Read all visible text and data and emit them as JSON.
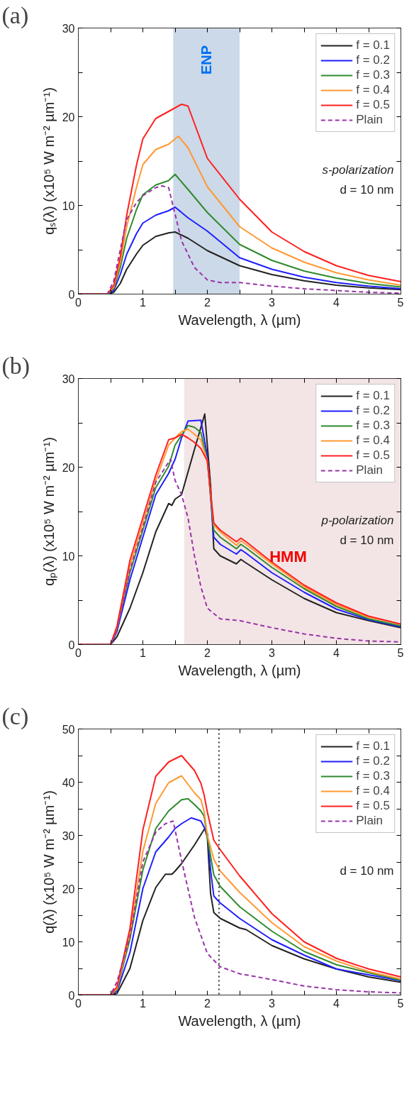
{
  "chart_data": [
    {
      "type": "line",
      "title": "(a)",
      "xlabel": "Wavelength, λ (µm)",
      "ylabel": "qₛ(λ) (x10⁵ W m⁻² µm⁻¹)",
      "xlim": [
        0,
        5
      ],
      "ylim": [
        0,
        30
      ],
      "xticks": [
        0,
        {
          "value": 0.5,
          "label": null
        },
        1,
        {
          "value": 1.5,
          "label": null
        },
        2,
        {
          "value": 2.5,
          "label": null
        },
        3,
        {
          "value": 3.5,
          "label": null
        },
        4,
        {
          "value": 4.5,
          "label": null
        },
        5
      ],
      "yticks": [
        0,
        {
          "value": 5,
          "label": null
        },
        10,
        {
          "value": 15,
          "label": null
        },
        20,
        {
          "value": 25,
          "label": null
        },
        30
      ],
      "legend": "top right",
      "grid": false,
      "bands": [
        {
          "axis": "x",
          "from": 1.47,
          "to": 2.5,
          "label": "ENP",
          "color": "#ccd9e8"
        }
      ],
      "annotations": [
        "s-polarization",
        "d = 10 nm"
      ],
      "series": [
        {
          "name": "f = 0.1",
          "color": "#222222",
          "x": [
            0,
            0.45,
            0.55,
            0.65,
            0.75,
            0.9,
            1.0,
            1.2,
            1.4,
            1.5,
            1.7,
            2.0,
            2.5,
            3.0,
            3.5,
            4.0,
            4.5,
            5.0
          ],
          "values": [
            0,
            0,
            0.2,
            1.2,
            2.8,
            4.5,
            5.5,
            6.5,
            6.9,
            7.0,
            6.3,
            4.9,
            3.2,
            2.2,
            1.5,
            1.0,
            0.7,
            0.5
          ]
        },
        {
          "name": "f = 0.2",
          "color": "#1f1fff",
          "x": [
            0,
            0.45,
            0.55,
            0.65,
            0.75,
            0.9,
            1.0,
            1.2,
            1.4,
            1.5,
            1.7,
            2.0,
            2.5,
            3.0,
            3.5,
            4.0,
            4.5,
            5.0
          ],
          "values": [
            0,
            0,
            0.4,
            2.2,
            4.5,
            6.8,
            8.0,
            8.9,
            9.4,
            9.8,
            8.6,
            7.1,
            4.1,
            2.8,
            1.9,
            1.3,
            0.9,
            0.6
          ]
        },
        {
          "name": "f = 0.3",
          "color": "#2e8b2e",
          "x": [
            0,
            0.45,
            0.55,
            0.65,
            0.75,
            0.9,
            1.0,
            1.2,
            1.4,
            1.5,
            1.7,
            2.0,
            2.5,
            3.0,
            3.5,
            4.0,
            4.5,
            5.0
          ],
          "values": [
            0,
            0,
            0.6,
            3.0,
            6.3,
            9.5,
            11.2,
            12.3,
            12.8,
            13.5,
            11.8,
            9.2,
            5.6,
            3.8,
            2.6,
            1.8,
            1.2,
            0.8
          ]
        },
        {
          "name": "f = 0.4",
          "color": "#ff9933",
          "x": [
            0,
            0.45,
            0.55,
            0.65,
            0.75,
            0.9,
            1.0,
            1.2,
            1.4,
            1.55,
            1.7,
            2.0,
            2.5,
            3.0,
            3.5,
            4.0,
            4.5,
            5.0
          ],
          "values": [
            0,
            0,
            0.8,
            3.6,
            7.6,
            12.0,
            14.6,
            16.3,
            16.9,
            17.8,
            16.5,
            12.1,
            7.6,
            5.2,
            3.6,
            2.4,
            1.6,
            1.0
          ]
        },
        {
          "name": "f = 0.5",
          "color": "#ff2020",
          "x": [
            0,
            0.45,
            0.55,
            0.65,
            0.75,
            0.9,
            1.0,
            1.2,
            1.4,
            1.5,
            1.6,
            1.7,
            2.0,
            2.5,
            3.0,
            3.5,
            4.0,
            4.5,
            5.0
          ],
          "values": [
            0,
            0,
            1.0,
            4.2,
            8.9,
            14.5,
            17.5,
            19.8,
            20.6,
            21.0,
            21.4,
            21.2,
            15.3,
            10.7,
            7.0,
            4.8,
            3.2,
            2.1,
            1.4
          ]
        },
        {
          "name": "Plain",
          "color": "#9933aa",
          "line_style": "dashed",
          "x": [
            0,
            0.45,
            0.55,
            0.65,
            0.75,
            0.9,
            1.0,
            1.2,
            1.3,
            1.4,
            1.5,
            1.6,
            1.8,
            2.0,
            2.2,
            2.5,
            3.0,
            3.5,
            4.0,
            4.5,
            5.0
          ],
          "values": [
            0,
            0,
            1.5,
            5.0,
            8.4,
            10.3,
            11.1,
            12.0,
            12.2,
            12.0,
            9.0,
            6.0,
            3.0,
            1.6,
            1.3,
            1.3,
            0.9,
            0.6,
            0.4,
            0.2,
            0.1
          ]
        }
      ]
    },
    {
      "type": "line",
      "title": "(b)",
      "xlabel": "Wavelength, λ (µm)",
      "ylabel": "qₚ(λ) (x10⁵ W m⁻² µm⁻¹)",
      "xlim": [
        0,
        5
      ],
      "ylim": [
        0,
        30
      ],
      "xticks": [
        0,
        {
          "value": 0.5,
          "label": null
        },
        1,
        {
          "value": 1.5,
          "label": null
        },
        2,
        {
          "value": 2.5,
          "label": null
        },
        3,
        {
          "value": 3.5,
          "label": null
        },
        4,
        {
          "value": 4.5,
          "label": null
        },
        5
      ],
      "yticks": [
        0,
        {
          "value": 5,
          "label": null
        },
        10,
        {
          "value": 15,
          "label": null
        },
        20,
        {
          "value": 25,
          "label": null
        },
        30
      ],
      "legend": "top right",
      "grid": false,
      "bands": [
        {
          "axis": "x",
          "from": 1.64,
          "to": 5,
          "label": "HMM",
          "color": "#f3e5e5"
        }
      ],
      "annotations": [
        "p-polarization",
        "d = 10 nm"
      ],
      "series": [
        {
          "name": "f = 0.1",
          "color": "#222222",
          "x": [
            0,
            0.5,
            0.6,
            0.8,
            1.0,
            1.2,
            1.3,
            1.4,
            1.45,
            1.5,
            1.6,
            1.8,
            1.96,
            2.05,
            2.1,
            2.2,
            2.45,
            2.52,
            2.6,
            3.0,
            3.5,
            4.0,
            4.5,
            5.0
          ],
          "values": [
            0,
            0,
            0.9,
            4.1,
            8.1,
            12.7,
            14.3,
            15.9,
            15.7,
            16.4,
            16.9,
            22.0,
            26.0,
            18.0,
            10.8,
            10.0,
            9.1,
            9.6,
            9.2,
            7.3,
            5.2,
            3.6,
            2.7,
            1.9
          ]
        },
        {
          "name": "f = 0.2",
          "color": "#1f1fff",
          "x": [
            0,
            0.5,
            0.6,
            0.8,
            1.0,
            1.2,
            1.4,
            1.5,
            1.6,
            1.7,
            1.9,
            2.0,
            2.1,
            2.2,
            2.45,
            2.52,
            2.6,
            3.0,
            3.5,
            4.0,
            4.5,
            5.0
          ],
          "values": [
            0,
            0,
            1.5,
            7.3,
            12.1,
            16.9,
            19.3,
            20.9,
            23.3,
            25.2,
            25.3,
            21.2,
            12.1,
            11.3,
            10.2,
            10.7,
            10.3,
            8.1,
            5.9,
            4.0,
            2.8,
            2.0
          ]
        },
        {
          "name": "f = 0.3",
          "color": "#2e8b2e",
          "x": [
            0,
            0.5,
            0.6,
            0.8,
            1.0,
            1.2,
            1.4,
            1.5,
            1.6,
            1.7,
            1.8,
            1.9,
            2.0,
            2.1,
            2.2,
            2.45,
            2.52,
            2.6,
            3.0,
            3.5,
            4.0,
            4.5,
            5.0
          ],
          "values": [
            0,
            0,
            1.8,
            8.1,
            12.9,
            17.7,
            20.1,
            22.5,
            23.6,
            24.7,
            24.5,
            23.9,
            20.7,
            12.9,
            12.1,
            10.8,
            11.3,
            10.9,
            8.7,
            6.3,
            4.3,
            2.9,
            2.1
          ]
        },
        {
          "name": "f = 0.4",
          "color": "#ff9933",
          "x": [
            0,
            0.5,
            0.6,
            0.8,
            1.0,
            1.2,
            1.4,
            1.5,
            1.6,
            1.7,
            1.8,
            1.9,
            2.0,
            2.1,
            2.2,
            2.45,
            2.52,
            2.6,
            3.0,
            3.5,
            4.0,
            4.5,
            5.0
          ],
          "values": [
            0,
            0,
            2.0,
            8.9,
            13.7,
            18.5,
            22.5,
            23.3,
            24.0,
            24.3,
            23.7,
            23.1,
            20.7,
            13.5,
            12.7,
            11.2,
            11.7,
            11.3,
            9.1,
            6.5,
            4.5,
            3.1,
            2.3
          ]
        },
        {
          "name": "f = 0.5",
          "color": "#ff2020",
          "x": [
            0,
            0.5,
            0.6,
            0.8,
            1.0,
            1.2,
            1.4,
            1.5,
            1.6,
            1.7,
            1.8,
            1.9,
            2.0,
            2.1,
            2.2,
            2.45,
            2.52,
            2.6,
            3.0,
            3.5,
            4.0,
            4.5,
            5.0
          ],
          "values": [
            0,
            0,
            2.1,
            9.5,
            14.3,
            19.1,
            23.1,
            23.3,
            23.7,
            23.3,
            22.8,
            22.1,
            20.7,
            13.7,
            12.9,
            11.6,
            12.0,
            11.6,
            9.3,
            6.7,
            4.7,
            3.2,
            2.3
          ]
        },
        {
          "name": "Plain",
          "color": "#9933aa",
          "line_style": "dashed",
          "x": [
            0,
            0.5,
            0.6,
            0.8,
            1.0,
            1.2,
            1.43,
            1.5,
            1.6,
            1.7,
            1.8,
            1.9,
            2.0,
            2.2,
            2.5,
            3.0,
            3.5,
            4.0,
            4.5,
            5.0
          ],
          "values": [
            0,
            0,
            1.5,
            8.4,
            13.2,
            18.3,
            20.9,
            18.5,
            16.9,
            14.3,
            10.0,
            6.5,
            4.1,
            2.9,
            2.7,
            1.9,
            1.2,
            0.7,
            0.4,
            0.3
          ]
        }
      ]
    },
    {
      "type": "line",
      "title": "(c)",
      "xlabel": "Wavelength, λ (µm)",
      "ylabel": "q(λ) (x10⁵ W m⁻² µm⁻¹)",
      "xlim": [
        0,
        5
      ],
      "ylim": [
        0,
        50
      ],
      "xticks": [
        0,
        {
          "value": 0.5,
          "label": null
        },
        1,
        {
          "value": 1.5,
          "label": null
        },
        2,
        {
          "value": 2.5,
          "label": null
        },
        3,
        {
          "value": 3.5,
          "label": null
        },
        4,
        {
          "value": 4.5,
          "label": null
        },
        5
      ],
      "yticks": [
        0,
        {
          "value": 5,
          "label": null
        },
        10,
        {
          "value": 15,
          "label": null
        },
        20,
        {
          "value": 25,
          "label": null
        },
        30,
        {
          "value": 35,
          "label": null
        },
        40,
        {
          "value": 45,
          "label": null
        },
        50
      ],
      "legend": "top right",
      "grid": false,
      "ref_lines": [
        {
          "axis": "x",
          "value": 2.18,
          "color": "#333333",
          "line_style": "dotted"
        }
      ],
      "annotations": [
        "d = 10 nm"
      ],
      "series": [
        {
          "name": "f = 0.1",
          "color": "#222222",
          "x": [
            0,
            0.5,
            0.6,
            0.8,
            1.0,
            1.2,
            1.35,
            1.45,
            1.5,
            1.6,
            1.8,
            1.96,
            2.0,
            2.05,
            2.1,
            2.2,
            2.45,
            2.5,
            2.6,
            3.0,
            3.5,
            4.0,
            4.5,
            5.0
          ],
          "values": [
            0,
            0,
            0.3,
            5.0,
            14.0,
            20.2,
            22.7,
            22.7,
            23.3,
            24.7,
            28.2,
            31.3,
            29.6,
            19.1,
            15.5,
            14.4,
            12.9,
            12.6,
            12.3,
            9.3,
            6.8,
            4.9,
            3.4,
            2.4
          ]
        },
        {
          "name": "f = 0.2",
          "color": "#1f1fff",
          "x": [
            0,
            0.5,
            0.6,
            0.8,
            1.0,
            1.2,
            1.4,
            1.5,
            1.6,
            1.75,
            1.9,
            2.0,
            2.05,
            2.1,
            2.2,
            2.5,
            3.0,
            3.5,
            4.0,
            4.5,
            5.0
          ],
          "values": [
            0,
            0,
            0.7,
            8.0,
            20.0,
            26.9,
            29.7,
            31.3,
            32.2,
            33.3,
            32.7,
            30.4,
            23.5,
            18.6,
            17.3,
            14.4,
            10.4,
            7.5,
            4.9,
            3.8,
            2.7
          ]
        },
        {
          "name": "f = 0.3",
          "color": "#2e8b2e",
          "x": [
            0,
            0.5,
            0.6,
            0.8,
            1.0,
            1.2,
            1.4,
            1.6,
            1.7,
            1.8,
            1.9,
            1.95,
            2.0,
            2.1,
            2.2,
            2.5,
            3.0,
            3.5,
            4.0,
            4.5,
            5.0
          ],
          "values": [
            0,
            0,
            1.0,
            10.5,
            23.5,
            31.3,
            34.6,
            36.7,
            36.9,
            35.8,
            34.6,
            33.6,
            29.6,
            22.6,
            20.4,
            16.6,
            12.0,
            8.2,
            5.7,
            4.2,
            2.8
          ]
        },
        {
          "name": "f = 0.4",
          "color": "#ff9933",
          "x": [
            0,
            0.5,
            0.6,
            0.8,
            1.0,
            1.2,
            1.4,
            1.6,
            1.8,
            1.9,
            1.95,
            2.0,
            2.1,
            2.2,
            2.5,
            3.0,
            3.5,
            4.0,
            4.5,
            5.0
          ],
          "values": [
            0,
            0,
            1.2,
            11.5,
            27.0,
            36.0,
            39.9,
            41.2,
            38.0,
            36.7,
            34.5,
            30.0,
            25.5,
            23.3,
            19.3,
            13.6,
            9.1,
            6.4,
            4.4,
            3.0
          ]
        },
        {
          "name": "f = 0.5",
          "color": "#ff2020",
          "x": [
            0,
            0.5,
            0.6,
            0.8,
            1.0,
            1.2,
            1.4,
            1.6,
            1.8,
            1.9,
            1.95,
            2.0,
            2.1,
            2.2,
            2.5,
            3.0,
            3.5,
            4.0,
            4.5,
            5.0
          ],
          "values": [
            0,
            0,
            1.6,
            12.5,
            31.0,
            41.1,
            43.8,
            45.0,
            42.2,
            39.8,
            37.6,
            34.4,
            29.1,
            27.3,
            22.4,
            15.3,
            10.0,
            6.9,
            4.9,
            3.4
          ]
        },
        {
          "name": "Plain",
          "color": "#9933aa",
          "line_style": "dashed",
          "x": [
            0,
            0.5,
            0.6,
            0.8,
            1.0,
            1.2,
            1.35,
            1.47,
            1.6,
            1.8,
            2.0,
            2.2,
            2.5,
            3.0,
            3.5,
            4.0,
            4.5,
            5.0
          ],
          "values": [
            0,
            0,
            2.5,
            11.0,
            25.0,
            30.6,
            32.2,
            32.7,
            25.3,
            14.6,
            7.8,
            5.3,
            4.0,
            2.9,
            1.7,
            1.0,
            0.6,
            0.4
          ]
        }
      ]
    }
  ]
}
